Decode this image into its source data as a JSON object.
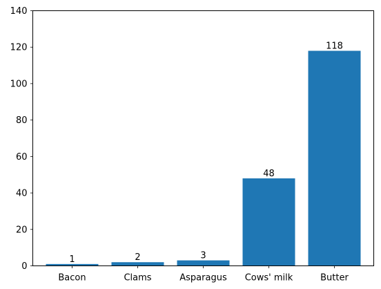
{
  "chart_data": {
    "type": "bar",
    "title": "",
    "xlabel": "",
    "ylabel": "",
    "categories": [
      "Bacon",
      "Clams",
      "Asparagus",
      "Cows' milk",
      "Butter"
    ],
    "values": [
      1,
      2,
      3,
      48,
      118
    ],
    "data_labels": [
      "1",
      "2",
      "3",
      "48",
      "118"
    ],
    "ylim": [
      0,
      140
    ],
    "yticks": [
      0,
      20,
      40,
      60,
      80,
      100,
      120,
      140
    ],
    "ytick_labels": [
      "0",
      "20",
      "40",
      "60",
      "80",
      "100",
      "120",
      "140"
    ],
    "grid": false,
    "legend": "none",
    "bar_color": "#1f77b4"
  }
}
